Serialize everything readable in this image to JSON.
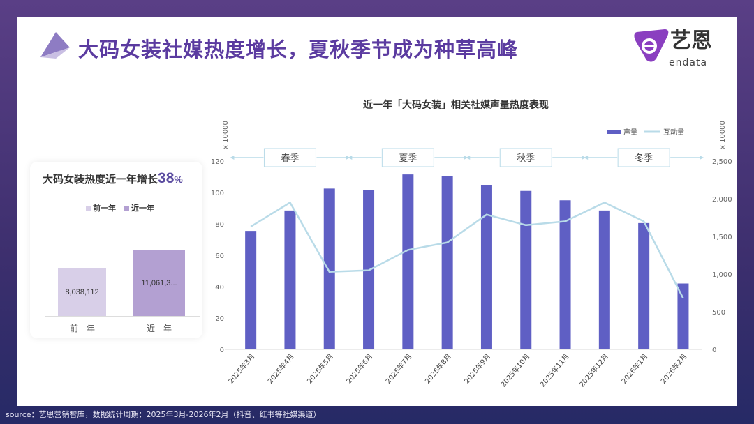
{
  "header": {
    "title": "大码女装社媒热度增长，夏秋季节成为种草高峰",
    "logo_cn": "艺恩",
    "logo_en": "endata"
  },
  "panel": {
    "title": "大码女装热度近一年增长",
    "growth": "38",
    "growth_unit": "%",
    "legend": [
      "前一年",
      "近一年"
    ],
    "bars": [
      {
        "category": "前一年",
        "label": "8,038,112",
        "value": 8038112,
        "color": "#d8cfe8"
      },
      {
        "category": "近一年",
        "label": "11,061,3...",
        "value": 11061300,
        "color": "#b3a0d2"
      }
    ]
  },
  "chart_data": {
    "type": "bar+line",
    "title": "近一年「大码女装」相关社媒声量热度表现",
    "categories": [
      "2025年3月",
      "2025年4月",
      "2025年5月",
      "2025年6月",
      "2025年7月",
      "2025年8月",
      "2025年9月",
      "2025年10月",
      "2025年11月",
      "2025年12月",
      "2026年1月",
      "2026年2月"
    ],
    "series": [
      {
        "name": "声量",
        "type": "bar",
        "axis": "left",
        "color": "#5f5fc4",
        "values": [
          75.5,
          88.5,
          102.5,
          101.5,
          111.5,
          110.5,
          104.5,
          101,
          95,
          88.5,
          80.5,
          42
        ]
      },
      {
        "name": "互动量",
        "type": "line",
        "axis": "right",
        "color": "#b9dbe8",
        "values": [
          1630,
          1950,
          1030,
          1050,
          1320,
          1420,
          1790,
          1650,
          1700,
          1950,
          1700,
          680
        ]
      }
    ],
    "y_left": {
      "label": "x 10000",
      "range": [
        0,
        120
      ],
      "ticks": [
        "0",
        "20",
        "40",
        "60",
        "80",
        "100",
        "120"
      ]
    },
    "y_right": {
      "label": "x 10000",
      "range": [
        0,
        2500
      ],
      "ticks": [
        "0",
        "500",
        "1,000",
        "1,500",
        "2,000",
        "2,500"
      ]
    },
    "seasons": [
      "春季",
      "夏季",
      "秋季",
      "冬季"
    ],
    "legend_position": "top-right",
    "grid": false
  },
  "footer": {
    "source": "source：艺恩营销智库，数据统计周期：2025年3月-2026年2月（抖音、红书等社媒渠道）"
  }
}
